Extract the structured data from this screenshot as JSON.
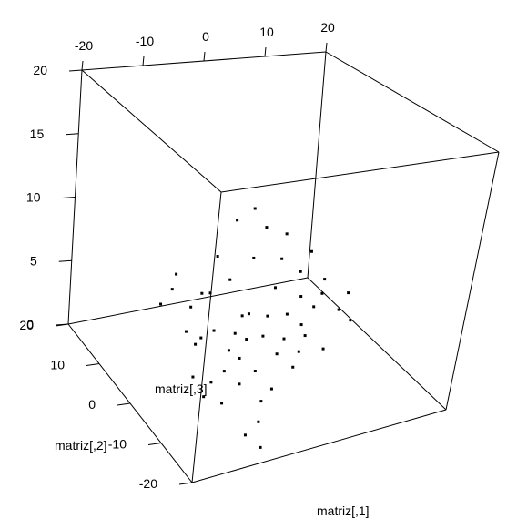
{
  "chart_data": {
    "type": "scatter3d",
    "title": "",
    "xlabel": "matriz[,1]",
    "ylabel": "matriz[,2]",
    "zlabel": "matriz[,3]",
    "xlim": [
      -20,
      20
    ],
    "ylim": [
      -20,
      20
    ],
    "zlim": [
      0,
      20
    ],
    "x_ticks": [
      "-20",
      "-10",
      "0",
      "10",
      "20"
    ],
    "y_ticks": [
      "20",
      "10",
      "0",
      "-10",
      "-20"
    ],
    "z_ticks": [
      "0",
      "5",
      "10",
      "15",
      "20"
    ],
    "grid": false,
    "point_color": "#000000",
    "points": [
      {
        "x": -13.4,
        "y": 4.2,
        "z": 5.9
      },
      {
        "x": -10.8,
        "y": 5.6,
        "z": 6.4
      },
      {
        "x": -9.6,
        "y": 6.8,
        "z": 7.1
      },
      {
        "x": -8.9,
        "y": 3.1,
        "z": 5.6
      },
      {
        "x": -6.2,
        "y": 4.8,
        "z": 5.9
      },
      {
        "x": -5.4,
        "y": 3.7,
        "z": 6.2
      },
      {
        "x": -3.1,
        "y": 6.2,
        "z": 8.1
      },
      {
        "x": -1.8,
        "y": 4.4,
        "z": 6.7
      },
      {
        "x": 0.6,
        "y": 7.5,
        "z": 10.2
      },
      {
        "x": 2.4,
        "y": 5.1,
        "z": 7.8
      },
      {
        "x": 3.9,
        "y": 8.2,
        "z": 10.6
      },
      {
        "x": 4.8,
        "y": 2.4,
        "z": 6.1
      },
      {
        "x": 5.3,
        "y": 6.9,
        "z": 9.4
      },
      {
        "x": 6.7,
        "y": 4.3,
        "z": 7.6
      },
      {
        "x": 8.1,
        "y": 5.7,
        "z": 9.0
      },
      {
        "x": 9.2,
        "y": 2.9,
        "z": 6.8
      },
      {
        "x": 11.4,
        "y": 3.8,
        "z": 7.9
      },
      {
        "x": 12.6,
        "y": 1.6,
        "z": 6.3
      },
      {
        "x": -1.2,
        "y": 1.2,
        "z": 4.8
      },
      {
        "x": -10.2,
        "y": 1.8,
        "z": 4.2
      },
      {
        "x": -9.7,
        "y": -0.3,
        "z": 3.8
      },
      {
        "x": -8.3,
        "y": 0.6,
        "z": 3.9
      },
      {
        "x": -5.9,
        "y": 1.1,
        "z": 4.1
      },
      {
        "x": -4.6,
        "y": -1.4,
        "z": 3.2
      },
      {
        "x": -2.7,
        "y": 0.4,
        "z": 3.8
      },
      {
        "x": -1.4,
        "y": -0.8,
        "z": 3.6
      },
      {
        "x": 0.3,
        "y": 1.9,
        "z": 4.6
      },
      {
        "x": 1.2,
        "y": -1.1,
        "z": 3.7
      },
      {
        "x": 2.9,
        "y": 0.9,
        "z": 4.5
      },
      {
        "x": 4.1,
        "y": -2.3,
        "z": 3.6
      },
      {
        "x": 5.8,
        "y": 0.2,
        "z": 4.6
      },
      {
        "x": 7.3,
        "y": -1.6,
        "z": 4.2
      },
      {
        "x": 8.6,
        "y": 1.3,
        "z": 5.4
      },
      {
        "x": 9.9,
        "y": -0.4,
        "z": 5.0
      },
      {
        "x": 11.7,
        "y": 0.5,
        "z": 5.6
      },
      {
        "x": 13.2,
        "y": -2.1,
        "z": 5.0
      },
      {
        "x": 15.1,
        "y": -1.3,
        "z": 5.9
      },
      {
        "x": 14.3,
        "y": -3.8,
        "z": 4.6
      },
      {
        "x": -11.6,
        "y": -3.5,
        "z": 2.4
      },
      {
        "x": -10.9,
        "y": -5.8,
        "z": 1.5
      },
      {
        "x": -9.1,
        "y": -4.6,
        "z": 2.1
      },
      {
        "x": -8.4,
        "y": -6.9,
        "z": 1.1
      },
      {
        "x": -6.7,
        "y": -4.1,
        "z": 2.6
      },
      {
        "x": -5.2,
        "y": -6.2,
        "z": 2.1
      },
      {
        "x": -3.8,
        "y": -3.3,
        "z": 3.1
      },
      {
        "x": -2.2,
        "y": -5.4,
        "z": 2.6
      },
      {
        "x": -0.6,
        "y": -7.8,
        "z": 1.8
      },
      {
        "x": 1.8,
        "y": -4.5,
        "z": 3.3
      },
      {
        "x": 3.4,
        "y": -6.7,
        "z": 2.8
      },
      {
        "x": 5.1,
        "y": -5.2,
        "z": 3.4
      },
      {
        "x": 6.9,
        "y": -3.6,
        "z": 4.0
      },
      {
        "x": 8.8,
        "y": -5.9,
        "z": 3.5
      },
      {
        "x": -4.1,
        "y": -10.6,
        "z": 0.4
      },
      {
        "x": -2.6,
        "y": -8.4,
        "z": 1.2
      },
      {
        "x": -7.2,
        "y": -12.4,
        "z": 0.2
      },
      {
        "x": -6.1,
        "y": -15.2,
        "z": 0.0
      }
    ]
  }
}
